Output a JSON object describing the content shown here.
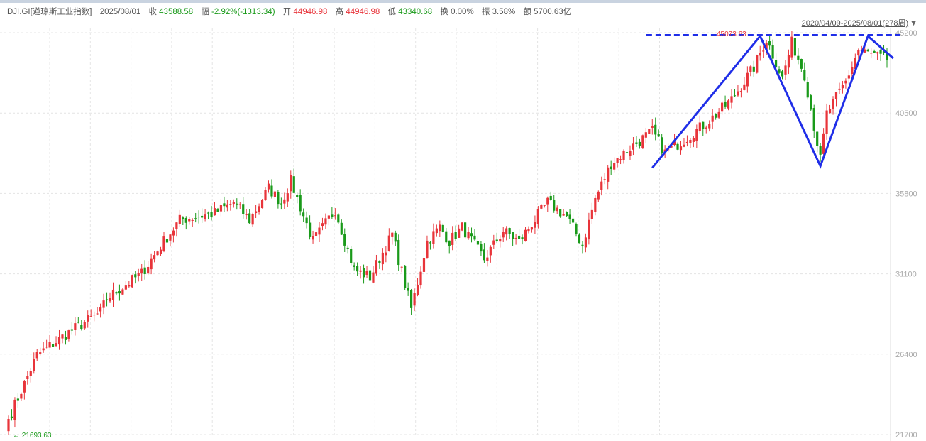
{
  "header": {
    "symbol": "DJI.GI[道琼斯工业指数]",
    "date": "2025/08/01",
    "close_label": "收",
    "close": "43588.58",
    "change_label": "幅",
    "change": "-2.92%(-1313.34)",
    "open_label": "开",
    "open": "44946.98",
    "high_label": "高",
    "high": "44946.98",
    "low_label": "低",
    "low": "43340.68",
    "turnover_label": "换",
    "turnover": "0.00%",
    "amplitude_label": "振",
    "amplitude": "3.58%",
    "amount_label": "额",
    "amount": "5700.63亿"
  },
  "range_label": "2020/04/09-2025/08/01(278周)",
  "colors": {
    "up": "#e8343a",
    "down": "#1a9a1a",
    "annotation": "#1f2ee8",
    "grid": "#e4e4e4"
  },
  "chart_data": {
    "type": "candlestick",
    "period": "weekly",
    "x_range": [
      "2020/04/09",
      "2025/08/01"
    ],
    "bar_count": 278,
    "ylim": [
      21700,
      45200
    ],
    "yticks": [
      21700,
      26400,
      31100,
      35800,
      40500,
      45200
    ],
    "grid": true,
    "max_label": "45073.63",
    "min_label": "21693.63",
    "close_path_week_index": [
      0,
      9,
      20,
      29,
      31,
      42,
      49,
      54,
      65,
      71,
      76,
      82,
      86,
      89,
      96,
      103,
      109,
      114,
      121,
      127,
      132,
      136,
      139,
      143,
      150,
      156,
      161,
      165,
      170,
      176,
      181,
      185,
      190,
      197,
      203,
      207,
      212,
      221,
      228,
      235,
      239,
      244,
      247,
      251,
      256,
      258,
      264,
      268,
      271,
      277
    ],
    "close_path_values": [
      22613,
      26350,
      27803,
      28841,
      29672,
      31125,
      32994,
      34240,
      34655,
      35277,
      34240,
      36108,
      35277,
      36523,
      32994,
      34862,
      31333,
      30918,
      33409,
      29049,
      32994,
      33824,
      32994,
      33824,
      31955,
      33616,
      32994,
      34031,
      35277,
      34447,
      32786,
      35485,
      37561,
      38599,
      39430,
      38184,
      38806,
      40052,
      41297,
      43166,
      44827,
      42543,
      44619,
      42751,
      37768,
      40467,
      42336,
      44204,
      43996,
      43588.58
    ],
    "annotations": {
      "resistance_line": {
        "value": 45073.63,
        "from_week": 200,
        "to_week": 280,
        "style": "dashed"
      },
      "trend_lines": [
        [
          203,
          37300
        ],
        [
          237,
          45000
        ],
        [
          256,
          37400
        ],
        [
          271,
          45000
        ],
        [
          279,
          43700
        ]
      ]
    }
  }
}
